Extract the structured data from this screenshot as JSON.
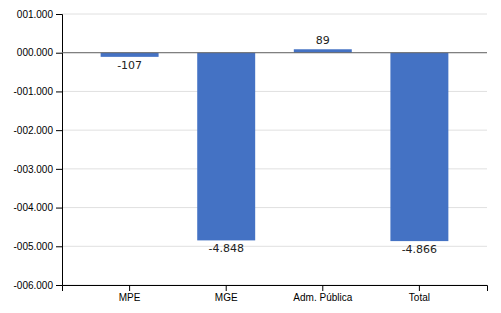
{
  "chart_data": {
    "type": "bar",
    "categories": [
      "MPE",
      "MGE",
      "Adm. Pública",
      "Total"
    ],
    "values": [
      -107,
      -4848,
      89,
      -4866
    ],
    "value_labels": [
      "-107",
      "-4.848",
      "89",
      "-4.866"
    ],
    "data_labels": true,
    "color": "#4472C4",
    "ylim": [
      -6000,
      1000
    ],
    "yticks": [
      {
        "value": -6000,
        "label": "-006.000"
      },
      {
        "value": -5000,
        "label": "-005.000"
      },
      {
        "value": -4000,
        "label": "-004.000"
      },
      {
        "value": -3000,
        "label": "-003.000"
      },
      {
        "value": -2000,
        "label": "-002.000"
      },
      {
        "value": -1000,
        "label": "-001.000"
      },
      {
        "value": 0,
        "label": "000.000"
      },
      {
        "value": 1000,
        "label": "001.000"
      }
    ],
    "grid": true
  }
}
